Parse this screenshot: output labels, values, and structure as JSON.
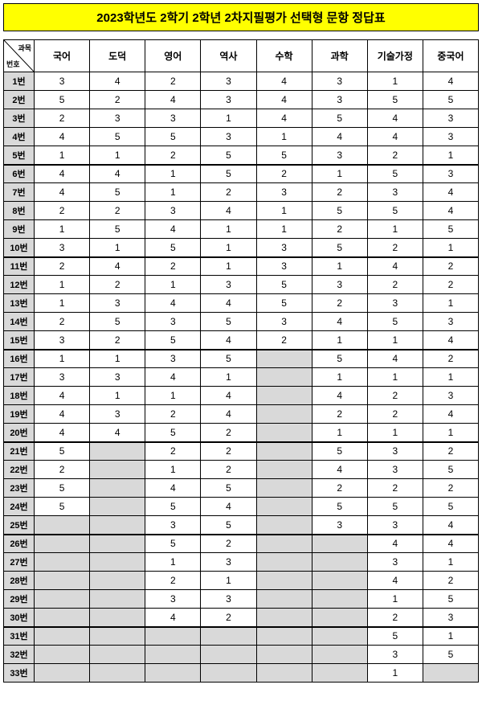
{
  "title": "2023학년도 2학기 2학년 2차지필평가 선택형 문항 정답표",
  "title_bg": "#ffff00",
  "header_diag_top": "과목",
  "header_diag_bottom": "번호",
  "subjects": [
    "국어",
    "도덕",
    "영어",
    "역사",
    "수학",
    "과학",
    "기술가정",
    "중국어"
  ],
  "row_label_suffix": "번",
  "thick_after": [
    5,
    10,
    15,
    20,
    25,
    30
  ],
  "answers": [
    [
      3,
      4,
      2,
      3,
      4,
      3,
      1,
      4
    ],
    [
      5,
      2,
      4,
      3,
      4,
      3,
      5,
      5
    ],
    [
      2,
      3,
      3,
      1,
      4,
      5,
      4,
      3
    ],
    [
      4,
      5,
      5,
      3,
      1,
      4,
      4,
      3
    ],
    [
      1,
      1,
      2,
      5,
      5,
      3,
      2,
      1
    ],
    [
      4,
      4,
      1,
      5,
      2,
      1,
      5,
      3
    ],
    [
      4,
      5,
      1,
      2,
      3,
      2,
      3,
      4
    ],
    [
      2,
      2,
      3,
      4,
      1,
      5,
      5,
      4
    ],
    [
      1,
      5,
      4,
      1,
      1,
      2,
      1,
      5
    ],
    [
      3,
      1,
      5,
      1,
      3,
      5,
      2,
      1
    ],
    [
      2,
      4,
      2,
      1,
      3,
      1,
      4,
      2
    ],
    [
      1,
      2,
      1,
      3,
      5,
      3,
      2,
      2
    ],
    [
      1,
      3,
      4,
      4,
      5,
      2,
      3,
      1
    ],
    [
      2,
      5,
      3,
      5,
      3,
      4,
      5,
      3
    ],
    [
      3,
      2,
      5,
      4,
      2,
      1,
      1,
      4
    ],
    [
      1,
      1,
      3,
      5,
      null,
      5,
      4,
      2
    ],
    [
      3,
      3,
      4,
      1,
      null,
      1,
      1,
      1
    ],
    [
      4,
      1,
      1,
      4,
      null,
      4,
      2,
      3
    ],
    [
      4,
      3,
      2,
      4,
      null,
      2,
      2,
      4
    ],
    [
      4,
      4,
      5,
      2,
      null,
      1,
      1,
      1
    ],
    [
      5,
      null,
      2,
      2,
      null,
      5,
      3,
      2
    ],
    [
      2,
      null,
      1,
      2,
      null,
      4,
      3,
      5
    ],
    [
      5,
      null,
      4,
      5,
      null,
      2,
      2,
      2
    ],
    [
      5,
      null,
      5,
      4,
      null,
      5,
      5,
      5
    ],
    [
      null,
      null,
      3,
      5,
      null,
      3,
      3,
      4
    ],
    [
      null,
      null,
      5,
      2,
      null,
      null,
      4,
      4
    ],
    [
      null,
      null,
      1,
      3,
      null,
      null,
      3,
      1
    ],
    [
      null,
      null,
      2,
      1,
      null,
      null,
      4,
      2
    ],
    [
      null,
      null,
      3,
      3,
      null,
      null,
      1,
      5
    ],
    [
      null,
      null,
      4,
      2,
      null,
      null,
      2,
      3
    ],
    [
      null,
      null,
      null,
      null,
      null,
      null,
      5,
      1
    ],
    [
      null,
      null,
      null,
      null,
      null,
      null,
      3,
      5
    ],
    [
      null,
      null,
      null,
      null,
      null,
      null,
      1,
      null
    ]
  ]
}
